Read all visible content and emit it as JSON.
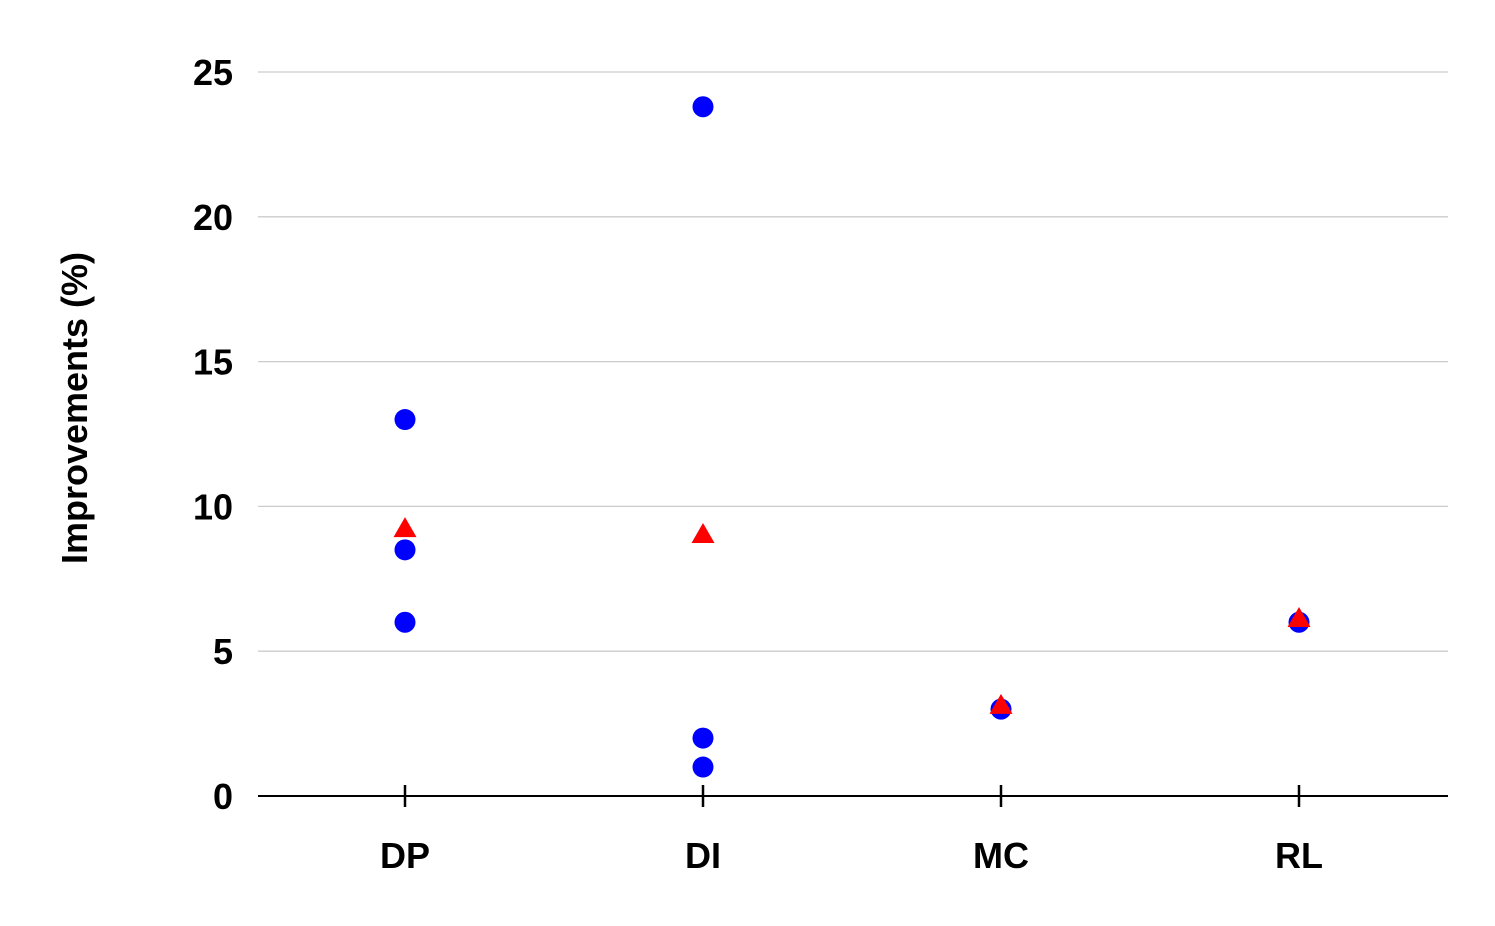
{
  "chart_data": {
    "type": "scatter",
    "title": "",
    "xlabel": "",
    "ylabel": "Improvements (%)",
    "categories": [
      "DP",
      "DI",
      "MC",
      "RL"
    ],
    "ylim": [
      0,
      25
    ],
    "yticks": [
      "0",
      "5",
      "10",
      "15",
      "20",
      "25"
    ],
    "grid": "horizontal",
    "legend": "none",
    "series": [
      {
        "marker": "circle",
        "color": "#0000ff",
        "points": [
          {
            "x": "DP",
            "y": 13.0
          },
          {
            "x": "DP",
            "y": 8.5
          },
          {
            "x": "DP",
            "y": 6.0
          },
          {
            "x": "DI",
            "y": 23.8
          },
          {
            "x": "DI",
            "y": 2.0
          },
          {
            "x": "DI",
            "y": 1.0
          },
          {
            "x": "MC",
            "y": 3.0
          },
          {
            "x": "RL",
            "y": 6.0
          }
        ]
      },
      {
        "marker": "triangle",
        "color": "#ff0000",
        "points": [
          {
            "x": "DP",
            "y": 9.2
          },
          {
            "x": "DI",
            "y": 9.0
          },
          {
            "x": "MC",
            "y": 3.1
          },
          {
            "x": "RL",
            "y": 6.1
          }
        ]
      }
    ]
  }
}
